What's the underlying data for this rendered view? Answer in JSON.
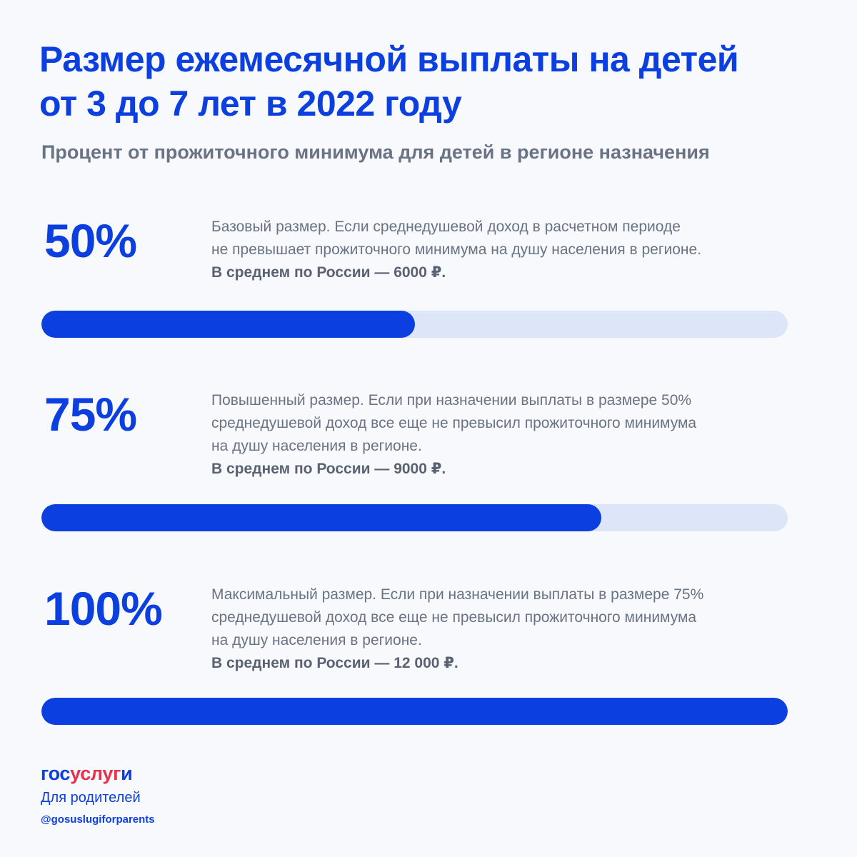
{
  "header": {
    "title_line1": "Размер ежемесячной выплаты на детей",
    "title_line2": "от 3 до 7 лет в 2022 году",
    "subtitle": "Процент от прожиточного минимума для детей в регионе назначения"
  },
  "tiers": [
    {
      "percent_label": "50%",
      "description_lines": [
        "Базовый размер. Если среднедушевой доход в расчетном периоде",
        "не превышает прожиточного минимума на душу населения в регионе."
      ],
      "average": "В среднем по России — 6000 ₽.",
      "bar_fill_fraction": 0.5
    },
    {
      "percent_label": "75%",
      "description_lines": [
        "Повышенный размер. Если при назначении выплаты в размере 50%",
        "среднедушевой доход все еще не превысил прожиточного минимума",
        "на душу населения в регионе."
      ],
      "average": "В среднем по России — 9000 ₽.",
      "bar_fill_fraction": 0.75
    },
    {
      "percent_label": "100%",
      "description_lines": [
        "Максимальный размер. Если при назначении выплаты в размере 75%",
        "среднедушевой доход все еще не превысил прожиточного минимума",
        "на душу населения в регионе."
      ],
      "average": "В среднем по России — 12 000 ₽.",
      "bar_fill_fraction": 1.0
    }
  ],
  "footer": {
    "logo_part1": "гос",
    "logo_part2": "услуг",
    "logo_part3": "и",
    "logo_subtitle": "Для родителей",
    "handle": "@gosuslugiforparents"
  },
  "colors": {
    "accent": "#0b3fe0",
    "track": "#dde5f8",
    "text_muted": "#6a7383",
    "logo_red": "#e8324a",
    "background": "#f7f9fd"
  }
}
